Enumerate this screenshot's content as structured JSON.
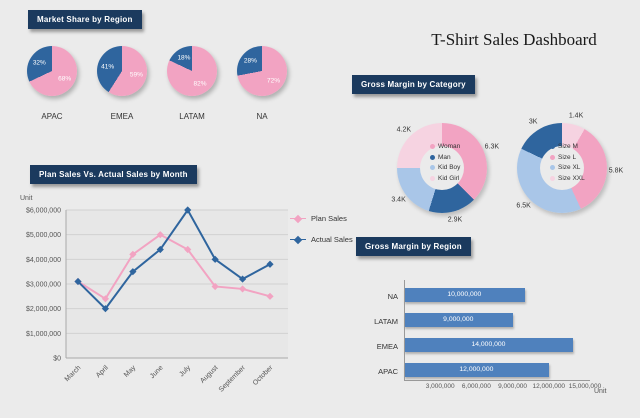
{
  "title": "T-Shirt Sales Dashboard",
  "sections": {
    "market_share": "Market Share by Region",
    "plan_vs_actual": "Plan Sales Vs. Actual Sales by Month",
    "margin_category": "Gross Margin by Category",
    "margin_region": "Gross Margin by Region"
  },
  "colors": {
    "page_bg": "#ebebeb",
    "header_bg": "#1b3a5e",
    "header_text": "#ffffff",
    "pink": "#f2a3c2",
    "dark_blue": "#2f659e",
    "light_blue": "#a9c6e8",
    "light_pink": "#f6d3e1",
    "bar_blue": "#4f81bd",
    "axis_text": "#555555",
    "label_text": "#333333"
  },
  "chart_data": [
    {
      "id": "market-share",
      "type": "pie",
      "title": "Market Share by Region",
      "pies": [
        {
          "category": "APAC",
          "slices": [
            {
              "pct": 68,
              "label": "68%",
              "color": "pink"
            },
            {
              "pct": 32,
              "label": "32%",
              "color": "dark_blue"
            }
          ]
        },
        {
          "category": "EMEA",
          "slices": [
            {
              "pct": 59,
              "label": "59%",
              "color": "pink"
            },
            {
              "pct": 41,
              "label": "41%",
              "color": "dark_blue"
            }
          ]
        },
        {
          "category": "LATAM",
          "slices": [
            {
              "pct": 82,
              "label": "82%",
              "color": "pink"
            },
            {
              "pct": 18,
              "label": "18%",
              "color": "dark_blue"
            }
          ]
        },
        {
          "category": "NA",
          "slices": [
            {
              "pct": 72,
              "label": "72%",
              "color": "pink"
            },
            {
              "pct": 28,
              "label": "28%",
              "color": "dark_blue"
            }
          ]
        }
      ]
    },
    {
      "id": "plan-vs-actual",
      "type": "line",
      "title": "Plan Sales Vs. Actual Sales by Month",
      "unit_label": "Unit",
      "categories": [
        "March",
        "April",
        "May",
        "June",
        "July",
        "August",
        "September",
        "October"
      ],
      "series": [
        {
          "name": "Plan Sales",
          "color": "pink",
          "values": [
            3100000,
            2400000,
            4200000,
            5000000,
            4400000,
            2900000,
            2800000,
            2500000
          ]
        },
        {
          "name": "Actual Sales",
          "color": "dark_blue",
          "values": [
            3100000,
            2000000,
            3500000,
            4400000,
            6000000,
            4000000,
            3200000,
            3800000
          ]
        }
      ],
      "ylim": [
        0,
        6000000
      ],
      "ytick_labels": [
        "$0",
        "$1,000,000",
        "$2,000,000",
        "$3,000,000",
        "$4,000,000",
        "$5,000,000",
        "$6,000,000"
      ],
      "grid": true,
      "legend_position": "right"
    },
    {
      "id": "margin-category-a",
      "type": "pie",
      "subtype": "donut",
      "title": "Gross Margin by Category",
      "segments": [
        {
          "label": "Woman",
          "value": 6.3,
          "text": "6.3K",
          "color": "pink"
        },
        {
          "label": "Man",
          "value": 2.9,
          "text": "2.9K",
          "color": "dark_blue"
        },
        {
          "label": "Kid Boy",
          "value": 3.4,
          "text": "3.4K",
          "color": "light_blue"
        },
        {
          "label": "Kid Girl",
          "value": 4.2,
          "text": "4.2K",
          "color": "light_pink"
        }
      ],
      "legend": [
        "Woman",
        "Man",
        "Kid Boy",
        "Kid Girl"
      ]
    },
    {
      "id": "margin-category-b",
      "type": "pie",
      "subtype": "donut",
      "title": "Gross Margin by Category",
      "segments": [
        {
          "label": "Size XXL",
          "value": 1.4,
          "text": "1.4K",
          "color": "light_pink"
        },
        {
          "label": "Size L",
          "value": 5.8,
          "text": "5.8K",
          "color": "pink"
        },
        {
          "label": "Size XL",
          "value": 6.5,
          "text": "6.5K",
          "color": "light_blue"
        },
        {
          "label": "Size M",
          "value": 3,
          "text": "3K",
          "color": "dark_blue"
        }
      ],
      "legend": [
        "Size M",
        "Size L",
        "Size XL",
        "Size XXL"
      ]
    },
    {
      "id": "margin-region",
      "type": "bar",
      "orientation": "horizontal",
      "title": "Gross Margin by Region",
      "unit_label": "Unit",
      "categories": [
        "NA",
        "LATAM",
        "EMEA",
        "APAC"
      ],
      "values": [
        10000000,
        9000000,
        14000000,
        12000000
      ],
      "value_labels": [
        "10,000,000",
        "9,000,000",
        "14,000,000",
        "12,000,000"
      ],
      "xlim": [
        0,
        15500000
      ],
      "xticks": [
        3000000,
        6000000,
        9000000,
        12000000,
        15000000
      ],
      "xtick_labels": [
        "3,000,000",
        "6,000,000",
        "9,000,000",
        "12,000,000",
        "15,000,000"
      ]
    }
  ]
}
